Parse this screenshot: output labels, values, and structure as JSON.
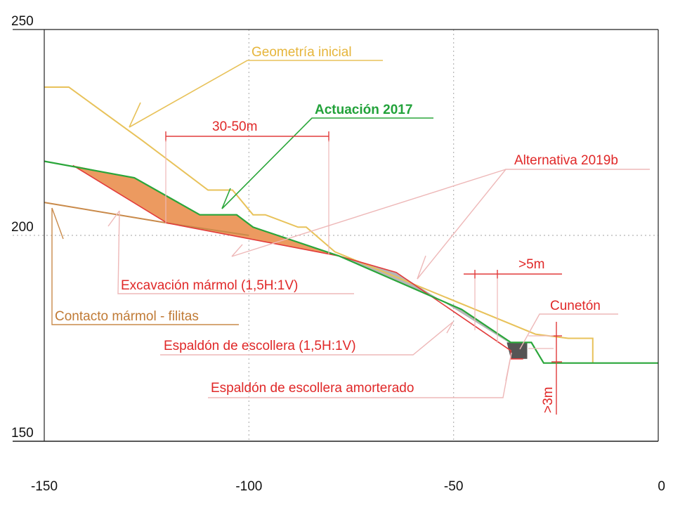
{
  "chart_data": {
    "type": "line",
    "xlim": [
      -150,
      0
    ],
    "ylim": [
      150,
      250
    ],
    "grid": "dotted",
    "x_ticks": [
      {
        "value": -150,
        "label": "-150"
      },
      {
        "value": -100,
        "label": "-100"
      },
      {
        "value": -50,
        "label": "-50"
      },
      {
        "value": 0,
        "label": "0"
      }
    ],
    "y_ticks": [
      {
        "value": 250,
        "label": "250"
      },
      {
        "value": 200,
        "label": "200"
      },
      {
        "value": 150,
        "label": "150"
      }
    ],
    "colors": {
      "initial": "#e8c25a",
      "actuacion": "#2aa63a",
      "alternativa": "#e23b3b",
      "contacto": "#c98a4a",
      "excavation_fill": "#ec9a60",
      "escollera_fill": "#b6b6b6",
      "amorterado_fill": "#555555",
      "leader_pink": "#eeb8b8",
      "grid": "#b5b5b5"
    },
    "series": [
      {
        "key": "initial",
        "x": [
          -150,
          -144,
          -126,
          -110,
          -104,
          -99,
          -96,
          -88,
          -86,
          -79,
          -30,
          -22,
          -16,
          -16
        ],
        "y": [
          236,
          236,
          223,
          211,
          211,
          205,
          205,
          202,
          202,
          196,
          176,
          175,
          175,
          169
        ]
      },
      {
        "key": "actuacion",
        "x": [
          -150,
          -128,
          -112,
          -103,
          -99,
          -78,
          -48,
          -36,
          -32,
          -31,
          -28,
          0
        ],
        "y": [
          218,
          214,
          205,
          205,
          202,
          195,
          182,
          174,
          174,
          174,
          169,
          169
        ]
      },
      {
        "key": "alternativa",
        "x": [
          -143,
          -120,
          -78,
          -64,
          -36,
          -36,
          -33
        ],
        "y": [
          217,
          203,
          195,
          191,
          172,
          170,
          170
        ]
      },
      {
        "key": "contacto",
        "x": [
          -150,
          -120,
          -100
        ],
        "y": [
          208,
          203,
          200
        ]
      }
    ],
    "regions": [
      {
        "key": "excavation",
        "x": [
          -143,
          -128,
          -112,
          -103,
          -99,
          -78,
          -120
        ],
        "y": [
          217,
          214,
          205,
          205,
          202,
          195,
          203
        ]
      },
      {
        "key": "escollera",
        "x": [
          -78,
          -64,
          -35,
          -48
        ],
        "y": [
          195,
          191,
          173,
          182
        ]
      },
      {
        "key": "amorterado",
        "x": [
          -37,
          -32,
          -32,
          -36
        ],
        "y": [
          174,
          174,
          170,
          170
        ]
      }
    ],
    "annotations": [
      {
        "key": "geometria",
        "text": "Geometría inicial",
        "color": "#e6b53a"
      },
      {
        "key": "actuacion",
        "text": "Actuación 2017",
        "color": "#22a23a"
      },
      {
        "key": "alternativa",
        "text": "Alternativa 2019b",
        "color": "#e02828"
      },
      {
        "key": "excavacion",
        "text": "Excavación mármol (1,5H:1V)",
        "color": "#e02828"
      },
      {
        "key": "contacto",
        "text": "Contacto mármol - filitas",
        "color": "#c07a35"
      },
      {
        "key": "espaldon",
        "text": "Espaldón de escollera (1,5H:1V)",
        "color": "#e02828"
      },
      {
        "key": "amorterado",
        "text": "Espaldón de escollera amorterado",
        "color": "#e02828"
      },
      {
        "key": "cuneton",
        "text": "Cunetón",
        "color": "#e02828"
      },
      {
        "key": "dim1",
        "text": "30-50m",
        "color": "#e02828"
      },
      {
        "key": "dim2",
        "text": ">5m",
        "color": "#e02828"
      },
      {
        "key": "dim3",
        "text": ">3m",
        "color": "#e02828"
      }
    ]
  }
}
